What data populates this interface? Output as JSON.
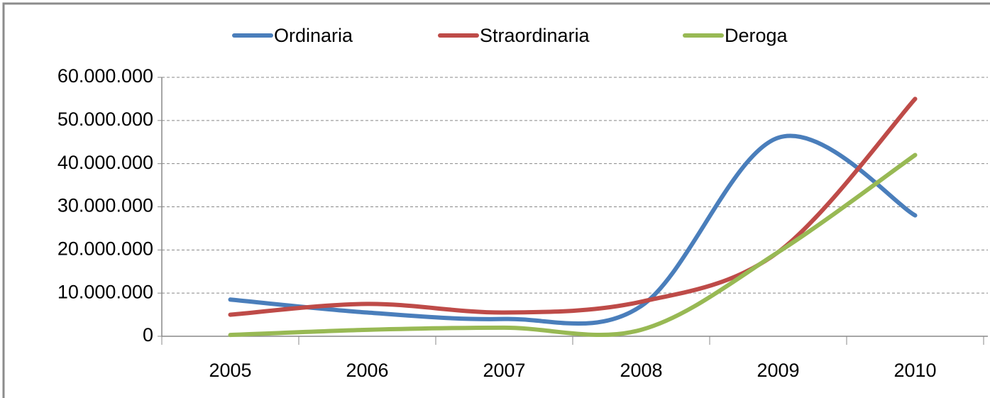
{
  "chart_data": {
    "type": "line",
    "categories": [
      "2005",
      "2006",
      "2007",
      "2008",
      "2009",
      "2010"
    ],
    "series": [
      {
        "name": "Ordinaria",
        "color": "#4a7ebb",
        "values": [
          8500000,
          5500000,
          4000000,
          7000000,
          46000000,
          28000000
        ]
      },
      {
        "name": "Straordinaria",
        "color": "#be4b48",
        "values": [
          5000000,
          7500000,
          5500000,
          8000000,
          19500000,
          55000000
        ]
      },
      {
        "name": "Deroga",
        "color": "#98b954",
        "values": [
          300000,
          1500000,
          2000000,
          1500000,
          19500000,
          42000000
        ]
      }
    ],
    "ylim": [
      0,
      60000000
    ],
    "yticks": [
      0,
      {
        "value": 10000000,
        "label": "10.000.000"
      },
      {
        "value": 20000000,
        "label": "20.000.000"
      },
      {
        "value": 30000000,
        "label": "30.000.000"
      },
      {
        "value": 40000000,
        "label": "40.000.000"
      },
      {
        "value": 50000000,
        "label": "50.000.000"
      },
      {
        "value": 60000000,
        "label": "60.000.000"
      }
    ],
    "grid": true,
    "smooth": true,
    "legend": "top"
  }
}
